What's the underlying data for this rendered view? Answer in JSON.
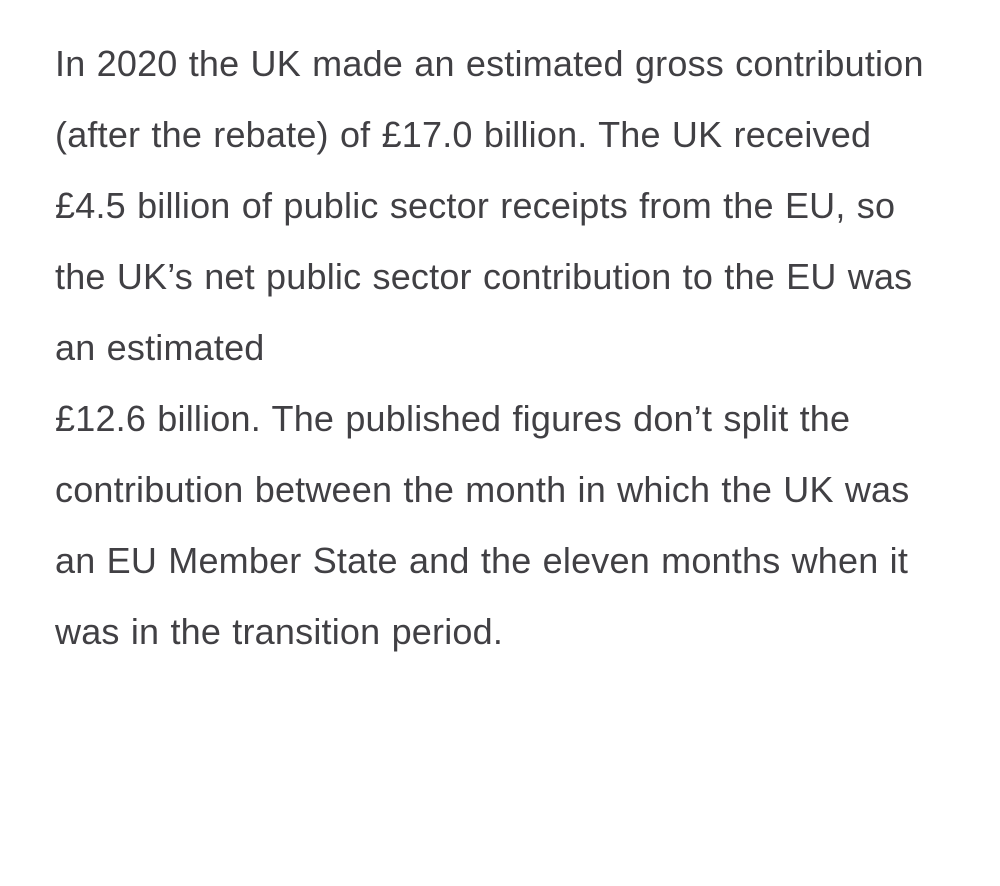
{
  "document": {
    "background_color": "#ffffff",
    "text_color": "#414044",
    "paragraph": {
      "part_1": "In 2020 the UK made an estimated gross contribution (after the rebate) of £17.0 billion. The UK received £4.5 billion of public sector receipts from the EU, so the UK’s net public sector contribution to the EU was an estimated",
      "part_2": "£12.6 billion. The published figures don’t split the contribution between the month in which the UK was an EU Member State and the eleven months when it was in the transition period."
    },
    "figures": {
      "gross_contribution": "£17.0 billion",
      "public_sector_receipts": "£4.5 billion",
      "net_contribution": "£12.6 billion",
      "year": "2020"
    }
  }
}
